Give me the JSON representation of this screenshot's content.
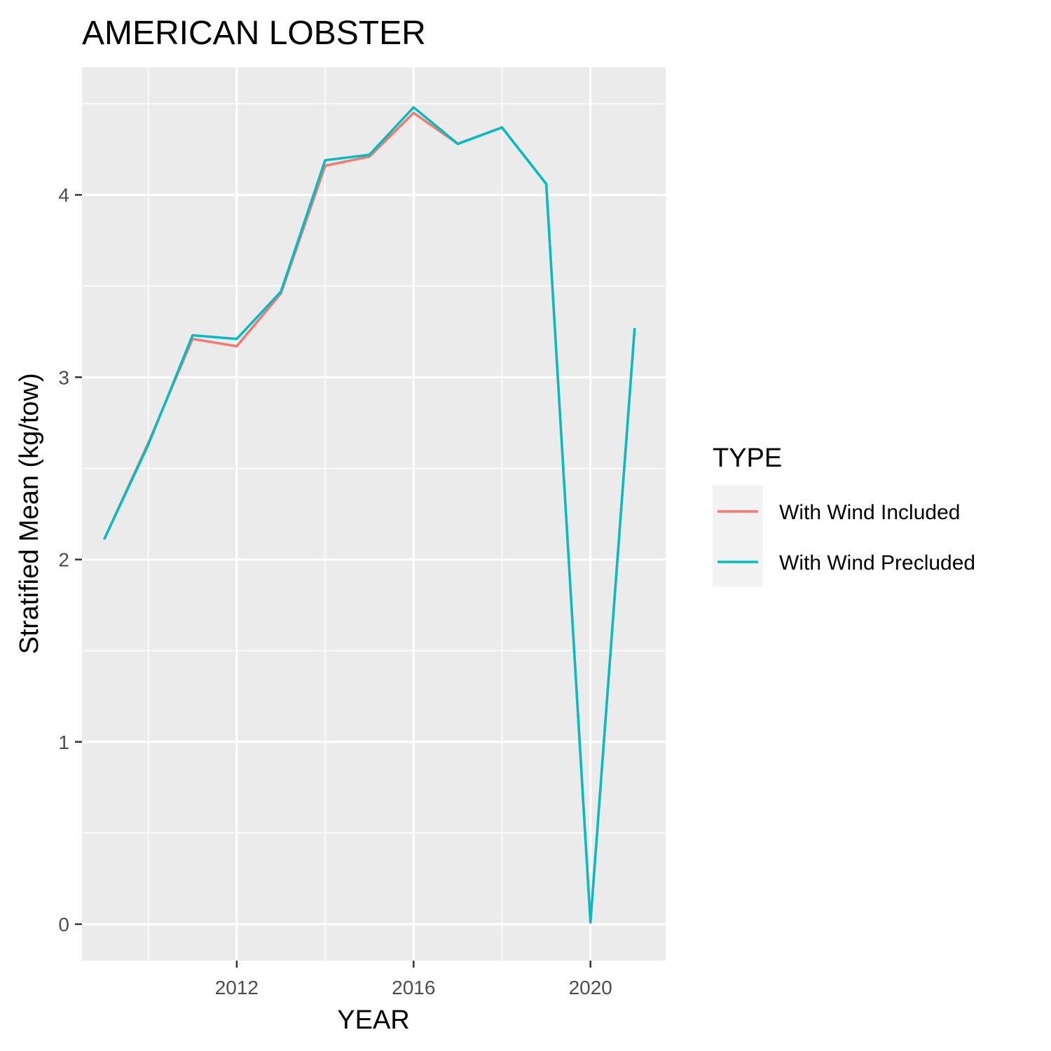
{
  "chart_data": {
    "type": "line",
    "title": "AMERICAN LOBSTER",
    "xlabel": "YEAR",
    "ylabel": "Stratified Mean (kg/tow)",
    "xlim": [
      2008.5,
      2021.7
    ],
    "ylim": [
      -0.2,
      4.7
    ],
    "x_ticks": [
      2012,
      2016,
      2020
    ],
    "y_ticks": [
      0,
      1,
      2,
      3,
      4
    ],
    "grid": true,
    "legend": {
      "title": "TYPE",
      "position": "right"
    },
    "x": [
      2009,
      2010,
      2011,
      2012,
      2013,
      2014,
      2015,
      2016,
      2017,
      2018,
      2019,
      2020,
      2021
    ],
    "series": [
      {
        "name": "With Wind Included",
        "color": "#F8766D",
        "values": [
          2.11,
          2.64,
          3.21,
          3.17,
          3.46,
          4.16,
          4.21,
          4.45,
          4.28,
          4.37,
          4.06,
          0.01,
          3.27
        ]
      },
      {
        "name": "With Wind Precluded",
        "color": "#00BFC4",
        "values": [
          2.11,
          2.63,
          3.23,
          3.21,
          3.47,
          4.19,
          4.22,
          4.48,
          4.28,
          4.37,
          4.06,
          0.01,
          3.27
        ]
      }
    ]
  }
}
